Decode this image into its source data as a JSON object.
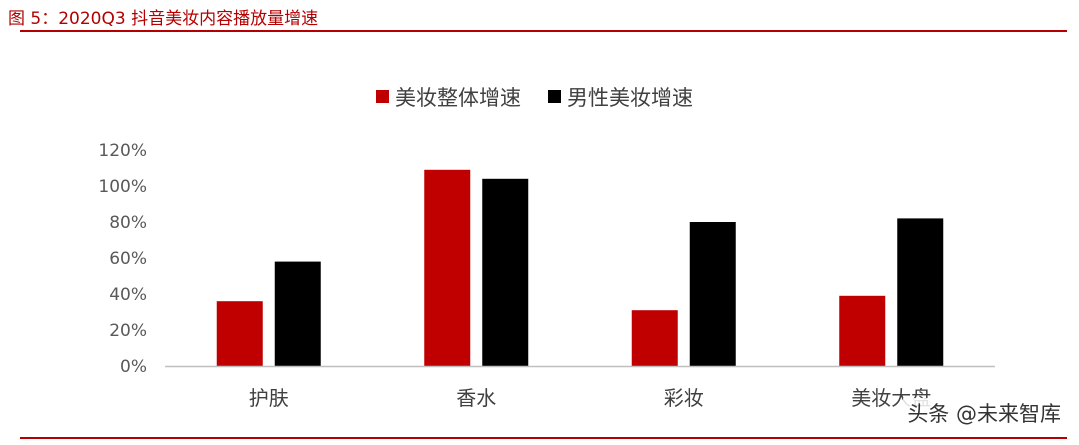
{
  "figure": {
    "title": "图 5：2020Q3 抖音美妆内容播放量增速"
  },
  "colors": {
    "accent": "#b40000",
    "series_red": "#c00000",
    "series_black": "#000000",
    "axis": "#bfbfbf",
    "tick_text": "#595959"
  },
  "watermark": "头条 @未来智库",
  "chart_data": {
    "type": "bar",
    "categories": [
      "护肤",
      "香水",
      "彩妆",
      "美妆大盘"
    ],
    "series": [
      {
        "name": "美妆整体增速",
        "values": [
          36,
          109,
          31,
          39
        ],
        "color": "#c00000"
      },
      {
        "name": "男性美妆增速",
        "values": [
          58,
          104,
          80,
          82
        ],
        "color": "#000000"
      }
    ],
    "y_ticks": [
      "0%",
      "20%",
      "40%",
      "60%",
      "80%",
      "100%",
      "120%"
    ],
    "ylim": [
      0,
      120
    ],
    "unit": "%",
    "grid": false,
    "legend_position": "top"
  }
}
